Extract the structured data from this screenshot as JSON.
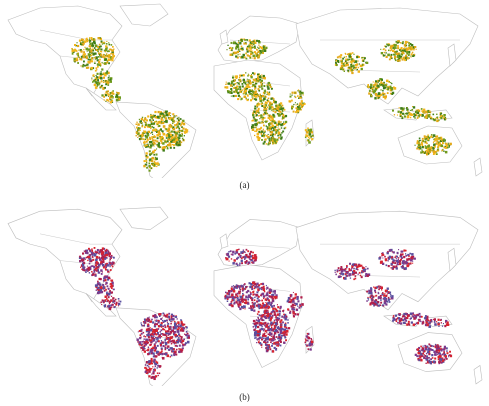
{
  "figure": {
    "panels": [
      {
        "id": "a",
        "caption": "(a)",
        "palette": [
          "#3f7d17",
          "#6f9a1c",
          "#e3a817",
          "#f2b51a"
        ]
      },
      {
        "id": "b",
        "caption": "(b)",
        "palette": [
          "#d8232e",
          "#b01e4a",
          "#7b3a8c",
          "#5a4f9e"
        ]
      }
    ],
    "outline_color": "#bdbdbd",
    "land_fill": "#ffffff"
  }
}
